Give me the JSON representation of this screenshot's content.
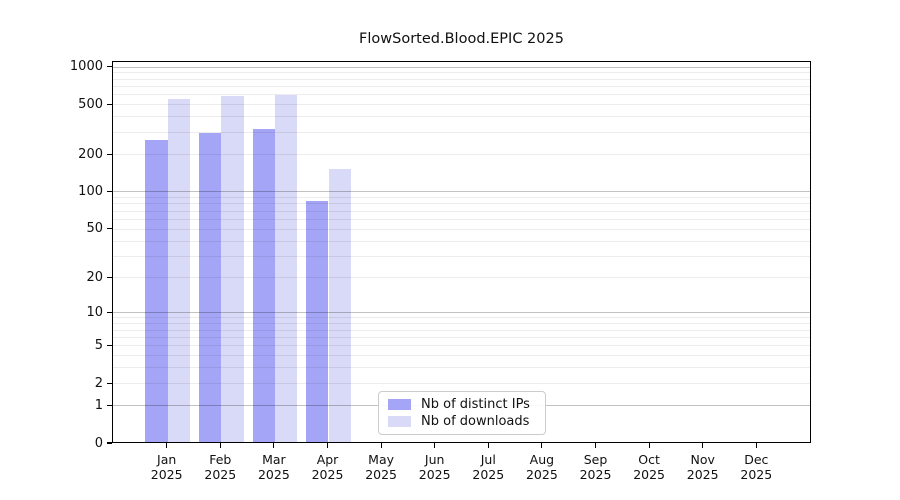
{
  "title": "FlowSorted.Blood.EPIC 2025",
  "chart_data": {
    "type": "bar",
    "title": "FlowSorted.Blood.EPIC 2025",
    "months": [
      "Jan",
      "Feb",
      "Mar",
      "Apr",
      "May",
      "Jun",
      "Jul",
      "Aug",
      "Sep",
      "Oct",
      "Nov",
      "Dec"
    ],
    "year_label": "2025",
    "series": [
      {
        "name": "Nb of distinct IPs",
        "color": "#a5a5f7",
        "values": [
          260,
          292,
          315,
          84,
          0,
          0,
          0,
          0,
          0,
          0,
          0,
          0
        ]
      },
      {
        "name": "Nb of downloads",
        "color": "#d9d9f8",
        "values": [
          553,
          577,
          589,
          152,
          0,
          0,
          0,
          0,
          0,
          0,
          0,
          0
        ]
      }
    ],
    "y_axis": {
      "scale": "log1p",
      "ylim": [
        0,
        1100
      ],
      "tick_labels": [
        0,
        1,
        2,
        5,
        10,
        20,
        50,
        100,
        200,
        500,
        1000
      ],
      "major_gridlines": [
        1,
        10,
        100,
        1000
      ],
      "minor_gridlines": [
        2,
        3,
        4,
        5,
        6,
        7,
        8,
        9,
        20,
        30,
        40,
        50,
        60,
        70,
        80,
        90,
        200,
        300,
        400,
        500,
        600,
        700,
        800,
        900
      ]
    },
    "grid": true,
    "legend_position": "lower center"
  },
  "legend": {
    "items": [
      {
        "label": "Nb of distinct IPs",
        "color": "#a5a5f7"
      },
      {
        "label": "Nb of downloads",
        "color": "#d9d9f8"
      }
    ]
  }
}
